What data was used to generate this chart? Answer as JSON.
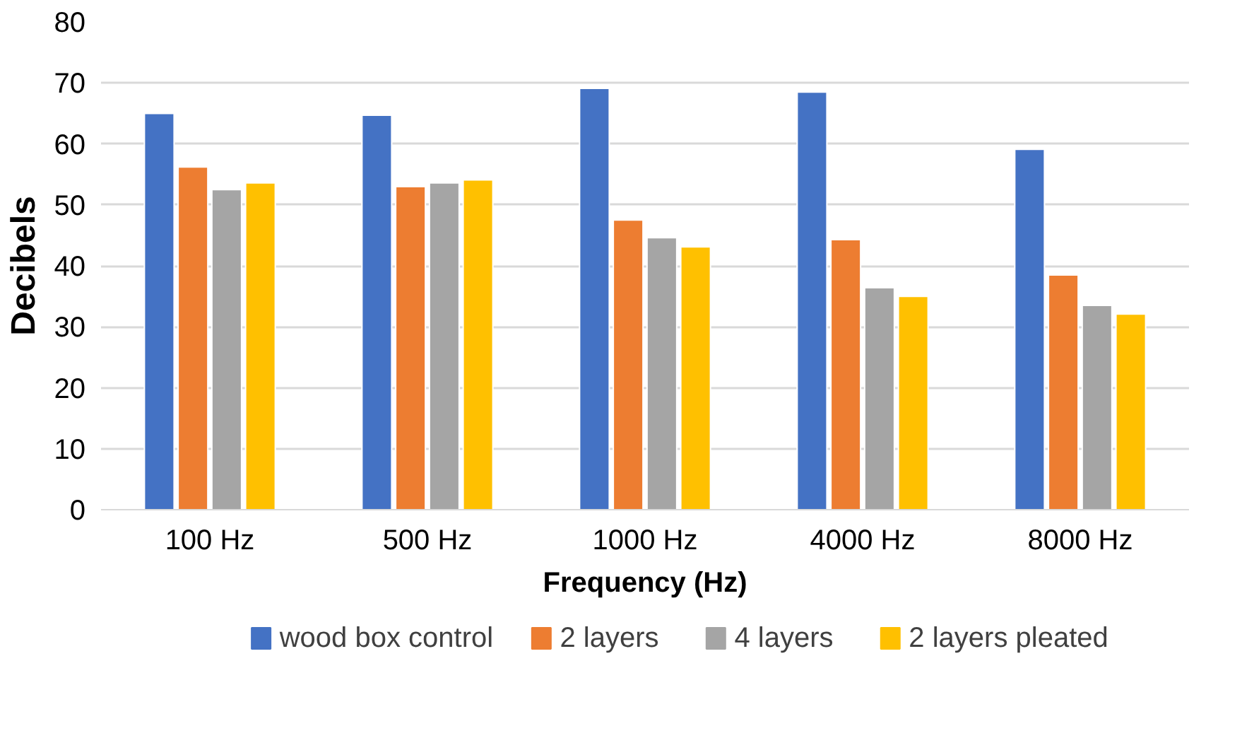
{
  "chart_data": {
    "type": "bar",
    "xlabel": "Frequency (Hz)",
    "ylabel": "Decibels",
    "categories": [
      "100 Hz",
      "500 Hz",
      "1000 Hz",
      "4000 Hz",
      "8000 Hz"
    ],
    "series": [
      {
        "name": "wood box control",
        "color": "#4472c4",
        "values": [
          65.0,
          64.7,
          69.1,
          68.5,
          59.1
        ]
      },
      {
        "name": "2 layers",
        "color": "#ed7d31",
        "values": [
          56.2,
          53.0,
          47.5,
          44.3,
          38.5
        ]
      },
      {
        "name": "4 layers",
        "color": "#a5a5a5",
        "values": [
          52.5,
          53.6,
          44.6,
          36.4,
          33.5
        ]
      },
      {
        "name": "2 layers pleated",
        "color": "#ffc000",
        "values": [
          53.6,
          54.1,
          43.1,
          35.0,
          32.1
        ]
      }
    ],
    "ylim": [
      0,
      80
    ],
    "yticks": [
      0,
      10,
      20,
      30,
      40,
      50,
      60,
      70,
      80
    ],
    "grid": "y",
    "legend": "bottom"
  }
}
